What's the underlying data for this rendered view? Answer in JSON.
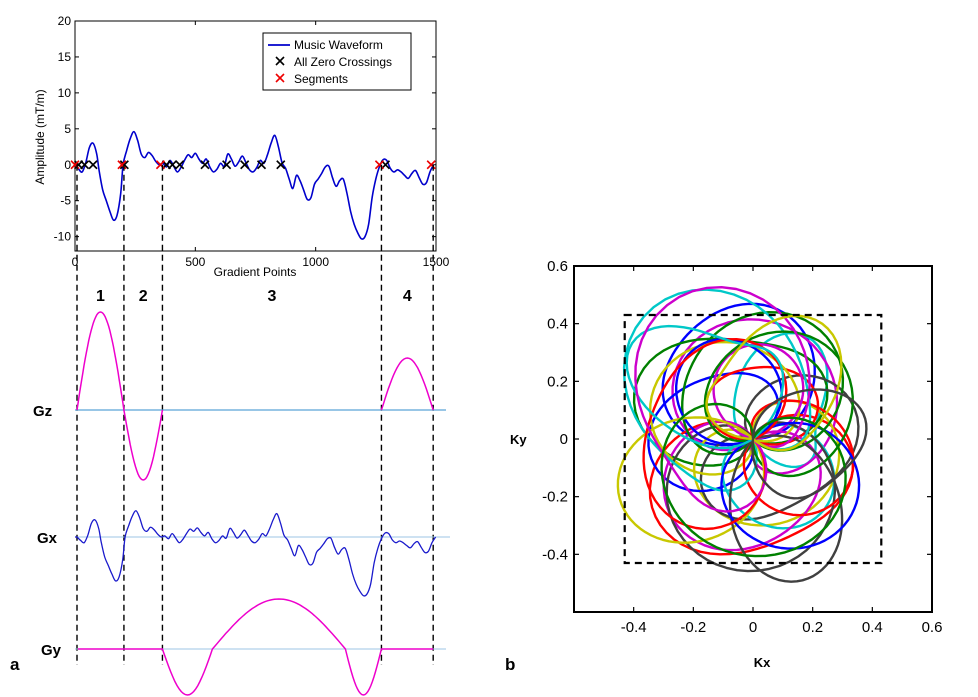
{
  "panel_labels": {
    "a": "a",
    "b": "b"
  },
  "colors": {
    "waveform": "#0000cc",
    "zero_crossing": "#000000",
    "segment": "#ee0000",
    "gradient_magenta": "#ee00cc",
    "baseline": "#5aa3d6",
    "trajectories": [
      "#0000ff",
      "#ff0000",
      "#00c8c8",
      "#cc00cc",
      "#008000",
      "#c8c800",
      "#404040"
    ]
  },
  "chart_data": [
    {
      "type": "line",
      "xlabel": "Gradient Points",
      "ylabel": "Amplitude (mT/m)",
      "xlim": [
        0,
        1500
      ],
      "ylim": [
        -12,
        20
      ],
      "xticks": [
        "0",
        "500",
        "1000",
        "1500"
      ],
      "yticks": [
        "-10",
        "-5",
        "0",
        "5",
        "10",
        "15",
        "20"
      ],
      "xtick_values": [
        0,
        500,
        1000,
        1500
      ],
      "ytick_values": [
        -10,
        -5,
        0,
        5,
        10,
        15,
        20
      ],
      "legend": {
        "entries": [
          "Music Waveform",
          "All Zero Crossings",
          "Segments"
        ],
        "location": "top-right"
      },
      "series": [
        {
          "name": "Music Waveform",
          "x": [
            0,
            15,
            30,
            45,
            60,
            75,
            90,
            100,
            115,
            130,
            145,
            160,
            175,
            190,
            200,
            215,
            230,
            245,
            260,
            275,
            290,
            305,
            320,
            335,
            350,
            365,
            380,
            395,
            410,
            425,
            440,
            455,
            470,
            485,
            500,
            515,
            530,
            545,
            560,
            575,
            590,
            605,
            620,
            635,
            650,
            665,
            680,
            695,
            710,
            725,
            740,
            755,
            770,
            785,
            800,
            815,
            830,
            845,
            860,
            875,
            890,
            905,
            920,
            935,
            950,
            965,
            980,
            995,
            1010,
            1025,
            1040,
            1055,
            1070,
            1085,
            1100,
            1115,
            1130,
            1145,
            1160,
            1175,
            1190,
            1205,
            1220,
            1235,
            1250,
            1265,
            1280,
            1295,
            1310,
            1325,
            1340,
            1355,
            1370,
            1385,
            1400,
            1415,
            1430,
            1445,
            1460,
            1475,
            1490
          ],
          "y": [
            0,
            -0.6,
            -1.0,
            0.3,
            2.4,
            3.0,
            1.5,
            -0.8,
            -3.5,
            -5.0,
            -6.5,
            -7.7,
            -7.0,
            -4.0,
            0,
            2.0,
            3.7,
            4.6,
            3.4,
            1.5,
            1.0,
            1.7,
            1.3,
            0.5,
            0,
            0.2,
            -0.3,
            0.6,
            -0.2,
            -1.0,
            -0.4,
            0.6,
            1.4,
            1.0,
            1.6,
            0.8,
            0.2,
            0.8,
            -0.3,
            -1.0,
            -0.6,
            0.2,
            -0.2,
            1.5,
            0.8,
            -0.2,
            0.4,
            1.2,
            0.3,
            -0.7,
            -1.0,
            -0.4,
            0.6,
            0.2,
            1.4,
            3.0,
            4.1,
            2.5,
            0.3,
            -0.5,
            -2.0,
            -3.3,
            -1.5,
            -2.2,
            -3.5,
            -4.8,
            -4.6,
            -2.7,
            -2.0,
            -1.2,
            -0.3,
            -0.2,
            -1.8,
            -3.0,
            -2.2,
            -2.0,
            -4.0,
            -6.5,
            -8.3,
            -9.5,
            -10.3,
            -10.0,
            -8.3,
            -4.5,
            -2.0,
            -0.3,
            0.7,
            0.6,
            -0.5,
            -1.0,
            -0.7,
            -1.0,
            -1.5,
            -1.9,
            -1.2,
            -0.8,
            -1.8,
            -2.7,
            -2.5,
            -1.0,
            0
          ]
        },
        {
          "name": "All Zero Crossings",
          "x": [
            15,
            40,
            75,
            205,
            380,
            405,
            435,
            540,
            630,
            705,
            775,
            855,
            1290
          ],
          "y": [
            0,
            0,
            0,
            0,
            0,
            0,
            0,
            0,
            0,
            0,
            0,
            0,
            0
          ]
        },
        {
          "name": "Segments",
          "x": [
            0,
            195,
            355,
            1265,
            1480
          ],
          "y": [
            0,
            0,
            0,
            0,
            0
          ]
        }
      ],
      "segments": {
        "labels": [
          "1",
          "2",
          "3",
          "4"
        ],
        "boundaries": [
          0,
          195,
          355,
          1265,
          1480
        ]
      },
      "gradient_traces": {
        "labels": [
          "Gz",
          "Gx",
          "Gy"
        ]
      }
    },
    {
      "type": "line",
      "xlabel": "Kx",
      "ylabel": "Ky",
      "xlim": [
        -0.6,
        0.6
      ],
      "ylim": [
        -0.6,
        0.6
      ],
      "xticks": [
        "-0.4",
        "-0.2",
        "0",
        "0.2",
        "0.4",
        "0.6"
      ],
      "yticks": [
        "0.6",
        "0.4",
        "0.2",
        "0",
        "-0.2",
        "-0.4"
      ],
      "xtick_values": [
        -0.4,
        -0.2,
        0,
        0.2,
        0.4,
        0.6
      ],
      "ytick_values": [
        0.6,
        0.4,
        0.2,
        0,
        -0.2,
        -0.4
      ],
      "box": {
        "kx": [
          -0.43,
          0.43
        ],
        "ky": [
          -0.43,
          0.43
        ]
      },
      "trajectory_count": 28
    }
  ]
}
